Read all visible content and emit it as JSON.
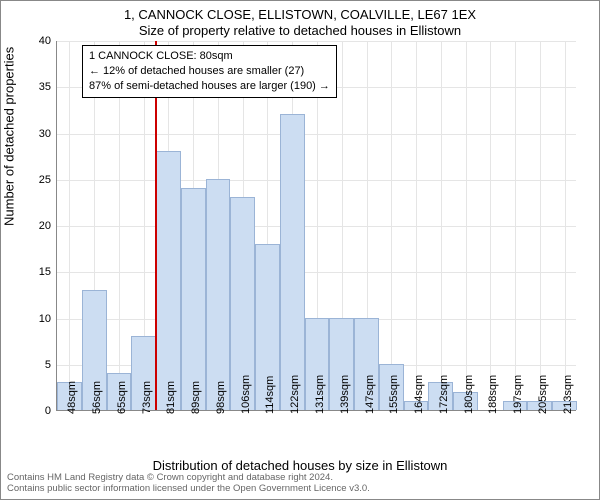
{
  "titles": {
    "line1": "1, CANNOCK CLOSE, ELLISTOWN, COALVILLE, LE67 1EX",
    "line2": "Size of property relative to detached houses in Ellistown"
  },
  "axes": {
    "ylabel": "Number of detached properties",
    "xlabel": "Distribution of detached houses by size in Ellistown",
    "ymin": 0,
    "ymax": 40,
    "ytick_step": 5,
    "label_fontsize": 13,
    "tick_fontsize": 11,
    "grid_color": "#e5e5e5",
    "axis_color": "#888888"
  },
  "chart": {
    "type": "histogram",
    "bar_fill": "#ccddf2",
    "bar_stroke": "#9bb4d6",
    "bar_width": 1.0,
    "background_color": "#ffffff",
    "categories": [
      "48sqm",
      "56sqm",
      "65sqm",
      "73sqm",
      "81sqm",
      "89sqm",
      "98sqm",
      "106sqm",
      "114sqm",
      "122sqm",
      "131sqm",
      "139sqm",
      "147sqm",
      "155sqm",
      "164sqm",
      "172sqm",
      "180sqm",
      "188sqm",
      "197sqm",
      "205sqm",
      "213sqm"
    ],
    "values": [
      3,
      13,
      4,
      8,
      28,
      24,
      25,
      23,
      18,
      32,
      10,
      10,
      10,
      5,
      1,
      3,
      2,
      0,
      1,
      1,
      1
    ]
  },
  "annotation": {
    "box_line1": "1 CANNOCK CLOSE: 80sqm",
    "box_line2": "← 12% of detached houses are smaller (27)",
    "box_line3": "87% of semi-detached houses are larger (190) →",
    "box_border": "#000000",
    "box_bg": "#ffffff",
    "refline_color": "#cc0000",
    "refline_category_index": 4
  },
  "footer": {
    "line1": "Contains HM Land Registry data © Crown copyright and database right 2024.",
    "line2": "Contains public sector information licensed under the Open Government Licence v3.0.",
    "color": "#666666"
  }
}
